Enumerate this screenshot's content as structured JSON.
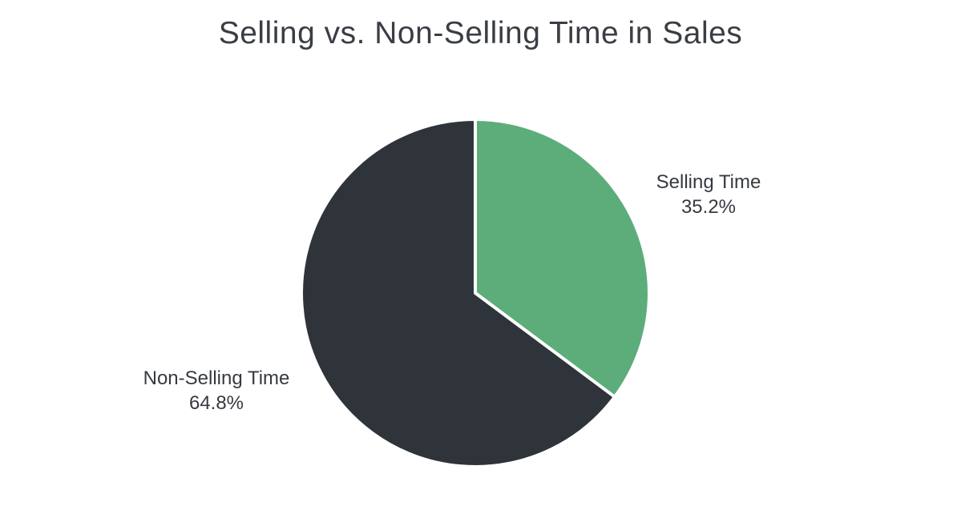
{
  "chart_data": {
    "type": "pie",
    "title": "Selling vs. Non-Selling Time in Sales",
    "start_angle_deg": 0,
    "direction": "clockwise",
    "legend": "none",
    "label_style": "outside, category name with percent value",
    "separator_color": "#ffffff",
    "background_color": "#ffffff",
    "text_color": "#363a40",
    "categories": [
      "Selling Time",
      "Non-Selling Time"
    ],
    "values": [
      35.2,
      64.8
    ],
    "slices": [
      {
        "label": "Selling Time",
        "value": 35.2,
        "display": "35.2%",
        "color": "#5dad7a"
      },
      {
        "label": "Non-Selling Time",
        "value": 64.8,
        "display": "64.8%",
        "color": "#2f333a"
      }
    ]
  }
}
